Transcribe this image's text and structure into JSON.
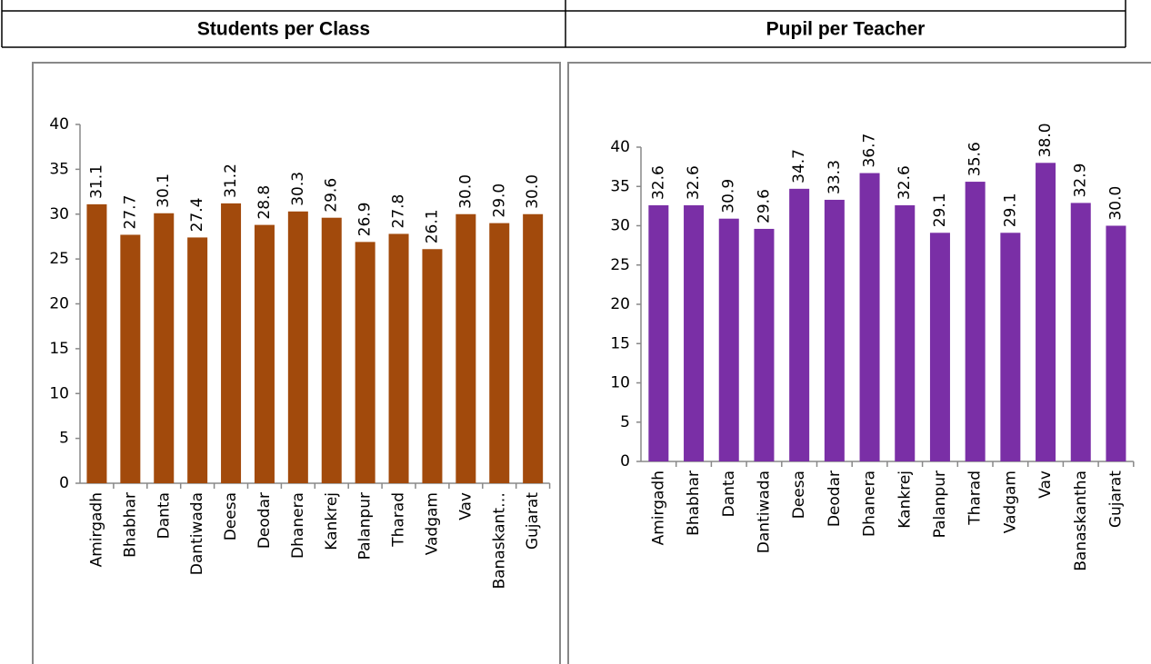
{
  "chart_data": [
    {
      "type": "bar",
      "title": "Students per Class",
      "categories": [
        "Amirgadh",
        "Bhabhar",
        "Danta",
        "Dantiwada",
        "Deesa",
        "Deodar",
        "Dhanera",
        "Kankrej",
        "Palanpur",
        "Tharad",
        "Vadgam",
        "Vav",
        "Banaskant…",
        "Gujarat"
      ],
      "values": [
        31.1,
        27.7,
        30.1,
        27.4,
        31.2,
        28.8,
        30.3,
        29.6,
        26.9,
        27.8,
        26.1,
        30.0,
        29.0,
        30.0
      ],
      "value_labels": [
        "31.1",
        "27.7",
        "30.1",
        "27.4",
        "31.2",
        "28.8",
        "30.3",
        "29.6",
        "26.9",
        "27.8",
        "26.1",
        "30.0",
        "29.0",
        "30.0"
      ],
      "color": "#a24a0c",
      "ylim": [
        0,
        40
      ],
      "yticks": [
        0,
        5,
        10,
        15,
        20,
        25,
        30,
        35,
        40
      ]
    },
    {
      "type": "bar",
      "title": "Pupil per Teacher",
      "categories": [
        "Amirgadh",
        "Bhabhar",
        "Danta",
        "Dantiwada",
        "Deesa",
        "Deodar",
        "Dhanera",
        "Kankrej",
        "Palanpur",
        "Tharad",
        "Vadgam",
        "Vav",
        "Banaskantha",
        "Gujarat"
      ],
      "values": [
        32.6,
        32.6,
        30.9,
        29.6,
        34.7,
        33.3,
        36.7,
        32.6,
        29.1,
        35.6,
        29.1,
        38.0,
        32.9,
        30.0
      ],
      "value_labels": [
        "32.6",
        "32.6",
        "30.9",
        "29.6",
        "34.7",
        "33.3",
        "36.7",
        "32.6",
        "29.1",
        "35.6",
        "29.1",
        "38.0",
        "32.9",
        "30.0"
      ],
      "color": "#7a2fa6",
      "ylim": [
        0,
        40
      ],
      "yticks": [
        0,
        5,
        10,
        15,
        20,
        25,
        30,
        35,
        40
      ]
    }
  ]
}
